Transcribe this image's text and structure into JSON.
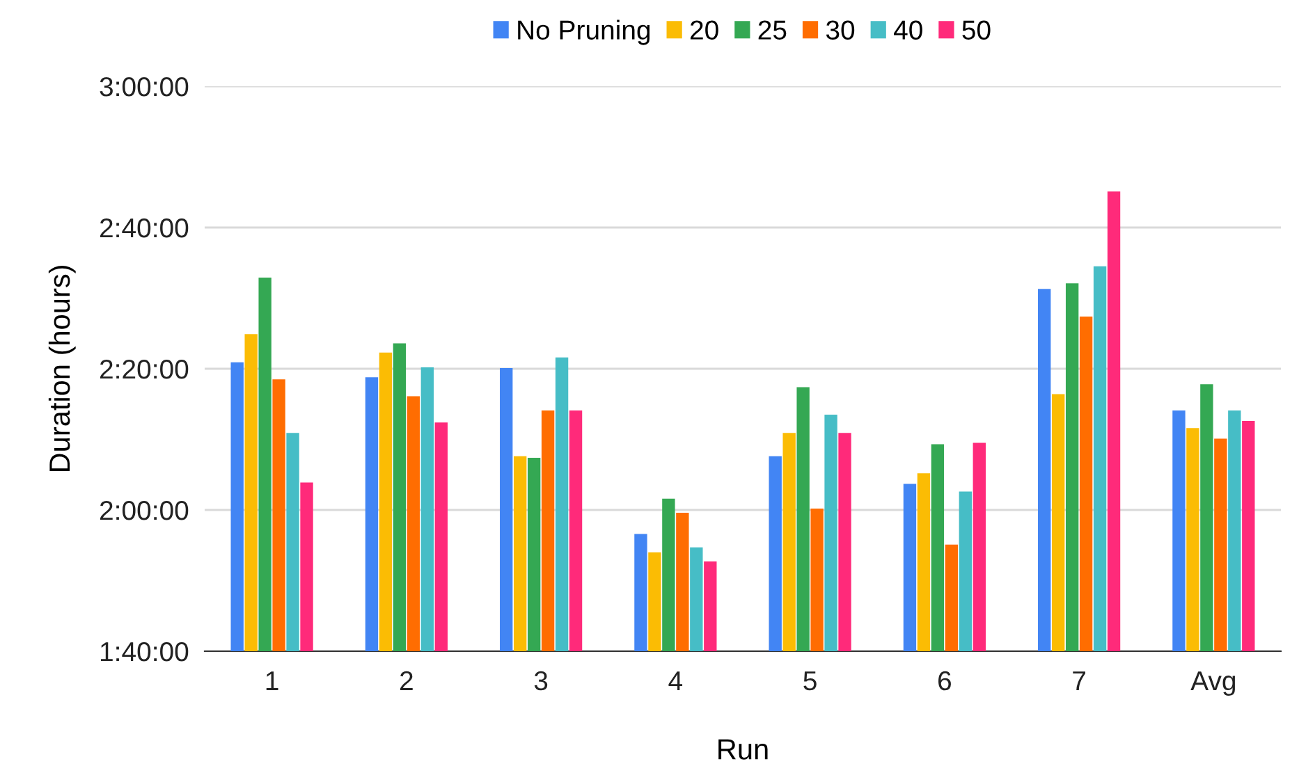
{
  "chart_data": {
    "type": "bar",
    "xlabel": "Run",
    "ylabel": "Duration (hours)",
    "categories": [
      "1",
      "2",
      "3",
      "4",
      "5",
      "6",
      "7",
      "Avg"
    ],
    "series": [
      {
        "name": "No Pruning",
        "color": "#4285f4",
        "values": [
          140.9,
          138.8,
          140.1,
          116.6,
          127.6,
          123.7,
          151.3,
          134.1
        ]
      },
      {
        "name": "20",
        "color": "#fbbc04",
        "values": [
          144.9,
          142.3,
          127.6,
          114.0,
          130.9,
          125.2,
          136.4,
          131.6
        ]
      },
      {
        "name": "25",
        "color": "#34a853",
        "values": [
          152.9,
          143.6,
          127.4,
          121.6,
          137.4,
          129.3,
          152.1,
          137.8
        ]
      },
      {
        "name": "30",
        "color": "#ff6d01",
        "values": [
          138.5,
          136.1,
          134.1,
          119.6,
          120.2,
          115.1,
          147.4,
          130.1
        ]
      },
      {
        "name": "40",
        "color": "#46bdc6",
        "values": [
          130.9,
          140.2,
          141.6,
          114.7,
          133.5,
          122.6,
          154.5,
          134.1
        ]
      },
      {
        "name": "50",
        "color": "#ff2a7a",
        "values": [
          123.9,
          132.4,
          134.1,
          112.7,
          130.9,
          129.5,
          165.1,
          132.6
        ]
      }
    ],
    "ylim": [
      100,
      180
    ],
    "yticks": [
      {
        "value": 100,
        "label": "1:40:00"
      },
      {
        "value": 120,
        "label": "2:00:00"
      },
      {
        "value": 140,
        "label": "2:20:00"
      },
      {
        "value": 160,
        "label": "2:40:00"
      },
      {
        "value": 180,
        "label": "3:00:00"
      }
    ],
    "grid": "y",
    "legend": "top"
  }
}
